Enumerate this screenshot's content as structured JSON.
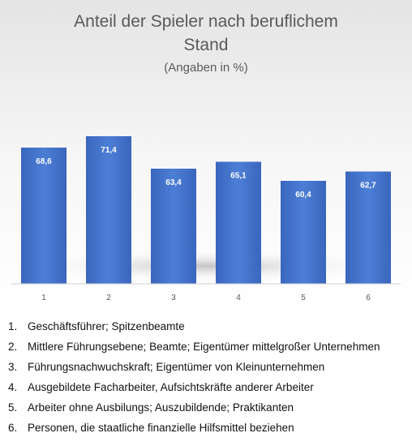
{
  "chart_data": {
    "type": "bar",
    "title": "Anteil der Spieler nach beruflichem Stand",
    "title_lines": [
      "Anteil der Spieler nach beruflichem",
      "Stand"
    ],
    "subtitle": "(Angaben in %)",
    "categories": [
      "1",
      "2",
      "3",
      "4",
      "5",
      "6"
    ],
    "values": [
      68.6,
      71.4,
      63.4,
      65.1,
      60.4,
      62.7
    ],
    "value_labels": [
      "68,6",
      "71,4",
      "63,4",
      "65,1",
      "60,4",
      "62,7"
    ],
    "ylim": [
      35,
      80
    ],
    "grid": false,
    "bar_color": "#4472c4",
    "legend": [
      {
        "num": "1.",
        "text": "Geschäftsführer; Spitzenbeamte"
      },
      {
        "num": "2.",
        "text": "Mittlere Führungsebene; Beamte; Eigentümer mittelgroßer Unternehmen"
      },
      {
        "num": "3.",
        "text": "Führungsnachwuchskraft; Eigentümer von Kleinunternehmen"
      },
      {
        "num": "4.",
        "text": "Ausgebildete Facharbeiter, Aufsichtskräfte anderer Arbeiter"
      },
      {
        "num": "5.",
        "text": "Arbeiter ohne Ausbilungs; Auszubildende; Praktikanten"
      },
      {
        "num": "6.",
        "text": "Personen, die staatliche finanzielle Hilfsmittel beziehen"
      }
    ]
  }
}
